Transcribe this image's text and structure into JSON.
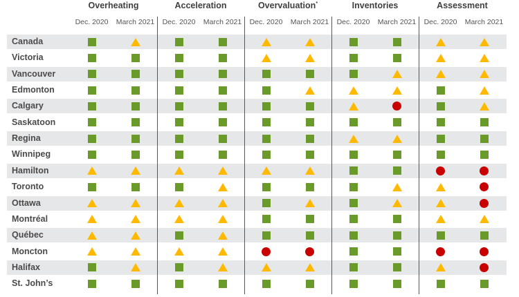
{
  "groups": [
    {
      "title": "Overheating",
      "sup": ""
    },
    {
      "title": "Acceleration",
      "sup": ""
    },
    {
      "title": "Overvaluation",
      "sup": "*"
    },
    {
      "title": "Inventories",
      "sup": ""
    },
    {
      "title": "Assessment",
      "sup": ""
    }
  ],
  "periods": [
    "Dec. 2020",
    "March 2021"
  ],
  "legend_colors": {
    "green-square": "#6a9a2a",
    "yellow-triangle": "#ffb900",
    "red-circle": "#c80000"
  },
  "rows": [
    {
      "city": "Canada",
      "values": [
        "G",
        "Y",
        "G",
        "G",
        "Y",
        "Y",
        "G",
        "G",
        "Y",
        "Y"
      ]
    },
    {
      "city": "Victoria",
      "values": [
        "G",
        "G",
        "G",
        "G",
        "Y",
        "Y",
        "G",
        "G",
        "Y",
        "Y"
      ]
    },
    {
      "city": "Vancouver",
      "values": [
        "G",
        "G",
        "G",
        "G",
        "G",
        "G",
        "G",
        "Y",
        "Y",
        "Y"
      ]
    },
    {
      "city": "Edmonton",
      "values": [
        "G",
        "G",
        "G",
        "G",
        "G",
        "Y",
        "Y",
        "Y",
        "G",
        "Y"
      ]
    },
    {
      "city": "Calgary",
      "values": [
        "G",
        "G",
        "G",
        "G",
        "G",
        "G",
        "Y",
        "R",
        "G",
        "Y"
      ]
    },
    {
      "city": "Saskatoon",
      "values": [
        "G",
        "G",
        "G",
        "G",
        "G",
        "G",
        "G",
        "G",
        "G",
        "G"
      ]
    },
    {
      "city": "Regina",
      "values": [
        "G",
        "G",
        "G",
        "G",
        "G",
        "G",
        "Y",
        "Y",
        "G",
        "G"
      ]
    },
    {
      "city": "Winnipeg",
      "values": [
        "G",
        "G",
        "G",
        "G",
        "G",
        "G",
        "G",
        "G",
        "G",
        "G"
      ]
    },
    {
      "city": "Hamilton",
      "values": [
        "Y",
        "Y",
        "Y",
        "Y",
        "Y",
        "Y",
        "G",
        "G",
        "R",
        "R"
      ]
    },
    {
      "city": "Toronto",
      "values": [
        "G",
        "G",
        "G",
        "Y",
        "G",
        "G",
        "G",
        "Y",
        "Y",
        "R"
      ]
    },
    {
      "city": "Ottawa",
      "values": [
        "Y",
        "Y",
        "Y",
        "Y",
        "G",
        "Y",
        "G",
        "Y",
        "Y",
        "R"
      ]
    },
    {
      "city": "Montréal",
      "values": [
        "Y",
        "Y",
        "Y",
        "Y",
        "G",
        "G",
        "G",
        "G",
        "Y",
        "Y"
      ]
    },
    {
      "city": "Québec",
      "values": [
        "Y",
        "Y",
        "G",
        "Y",
        "G",
        "G",
        "G",
        "G",
        "G",
        "G"
      ]
    },
    {
      "city": "Moncton",
      "values": [
        "Y",
        "Y",
        "Y",
        "Y",
        "R",
        "R",
        "G",
        "G",
        "R",
        "R"
      ]
    },
    {
      "city": "Halifax",
      "values": [
        "G",
        "Y",
        "G",
        "Y",
        "Y",
        "Y",
        "G",
        "G",
        "Y",
        "R"
      ]
    },
    {
      "city": "St. John’s",
      "values": [
        "G",
        "G",
        "G",
        "G",
        "G",
        "G",
        "G",
        "G",
        "G",
        "G"
      ]
    }
  ]
}
